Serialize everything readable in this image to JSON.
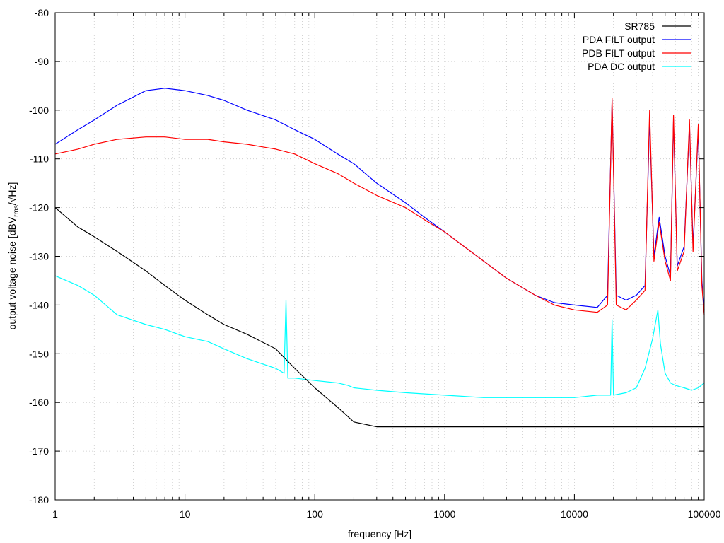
{
  "chart_data": {
    "type": "line",
    "xlabel": "frequency [Hz]",
    "ylabel": "output voltage noise [dBV",
    "ylabel_sub": "rms",
    "ylabel_tail": "/√Hz]",
    "x_scale": "log",
    "xlim": [
      1,
      100000
    ],
    "ylim": [
      -180,
      -80
    ],
    "x_ticks": [
      1,
      10,
      100,
      1000,
      10000,
      100000
    ],
    "x_tick_labels": [
      "1",
      "10",
      "100",
      "1000",
      "10000",
      "100000"
    ],
    "y_ticks": [
      -180,
      -170,
      -160,
      -150,
      -140,
      -130,
      -120,
      -110,
      -100,
      -90,
      -80
    ],
    "y_tick_labels": [
      "-180",
      "-170",
      "-160",
      "-150",
      "-140",
      "-130",
      "-120",
      "-110",
      "-100",
      "-90",
      "-80"
    ],
    "grid": true,
    "legend_position": "top-right",
    "series": [
      {
        "name": "SR785",
        "color": "#000000",
        "x": [
          1,
          1.5,
          2,
          3,
          5,
          7,
          10,
          15,
          20,
          30,
          50,
          70,
          100,
          150,
          200,
          300,
          500,
          1000,
          2000,
          5000,
          10000,
          20000,
          50000,
          100000
        ],
        "y": [
          -120,
          -124,
          -126,
          -129,
          -133,
          -136,
          -139,
          -142,
          -144,
          -146,
          -149,
          -153,
          -157,
          -161,
          -164,
          -165,
          -165,
          -165,
          -165,
          -165,
          -165,
          -165,
          -165,
          -165
        ]
      },
      {
        "name": "PDA FILT output",
        "color": "#0000ff",
        "x": [
          1,
          1.5,
          2,
          3,
          5,
          7,
          10,
          15,
          20,
          30,
          50,
          70,
          100,
          150,
          200,
          300,
          500,
          700,
          1000,
          2000,
          3000,
          5000,
          7000,
          10000,
          15000,
          18000,
          19500,
          21000,
          25000,
          30000,
          35000,
          38000,
          41000,
          45000,
          50000,
          55000,
          58000,
          62000,
          70000,
          77000,
          82000,
          90000,
          96000,
          100000
        ],
        "y": [
          -107,
          -104,
          -102,
          -99,
          -96,
          -95.5,
          -96,
          -97,
          -98,
          -100,
          -102,
          -104,
          -106,
          -109,
          -111,
          -115,
          -119,
          -122,
          -125,
          -131,
          -134.5,
          -138,
          -139.5,
          -140,
          -140.5,
          -138,
          -98,
          -138,
          -139,
          -138,
          -136,
          -102,
          -130,
          -122,
          -130,
          -134,
          -102,
          -132,
          -128,
          -103,
          -128,
          -104,
          -135,
          -141
        ]
      },
      {
        "name": "PDB FILT output",
        "color": "#ff0000",
        "x": [
          1,
          1.5,
          2,
          3,
          5,
          7,
          10,
          15,
          20,
          30,
          50,
          70,
          100,
          150,
          200,
          300,
          500,
          700,
          1000,
          2000,
          3000,
          5000,
          7000,
          10000,
          15000,
          18000,
          19500,
          21000,
          25000,
          30000,
          35000,
          38000,
          41000,
          45000,
          50000,
          55000,
          58000,
          62000,
          70000,
          77000,
          82000,
          90000,
          96000,
          100000
        ],
        "y": [
          -109,
          -108,
          -107,
          -106,
          -105.5,
          -105.5,
          -106,
          -106,
          -106.5,
          -107,
          -108,
          -109,
          -111,
          -113,
          -115,
          -117.5,
          -120,
          -122.5,
          -125,
          -131,
          -134.5,
          -138,
          -140,
          -141,
          -141.5,
          -140,
          -97.5,
          -140,
          -141,
          -139,
          -137,
          -100,
          -131,
          -123,
          -131,
          -135,
          -101,
          -133,
          -129,
          -102,
          -129,
          -103,
          -136,
          -142
        ]
      },
      {
        "name": "PDA DC output",
        "color": "#00ffff",
        "x": [
          1,
          1.5,
          2,
          3,
          5,
          7,
          10,
          15,
          20,
          30,
          50,
          58,
          60,
          62,
          70,
          100,
          150,
          180,
          200,
          300,
          500,
          1000,
          2000,
          5000,
          10000,
          15000,
          19000,
          19500,
          20000,
          25000,
          30000,
          35000,
          40000,
          44000,
          46000,
          50000,
          55000,
          60000,
          70000,
          80000,
          90000,
          100000
        ],
        "y": [
          -134,
          -136,
          -138,
          -142,
          -144,
          -145,
          -146.5,
          -147.5,
          -149,
          -151,
          -153,
          -154,
          -139,
          -155,
          -155,
          -155.5,
          -156,
          -156.5,
          -157,
          -157.5,
          -158,
          -158.5,
          -159,
          -159,
          -159,
          -158.5,
          -158.5,
          -143,
          -158.5,
          -158,
          -157,
          -153,
          -147,
          -141,
          -148,
          -154,
          -156,
          -156.5,
          -157,
          -157.5,
          -157,
          -156
        ]
      }
    ]
  }
}
